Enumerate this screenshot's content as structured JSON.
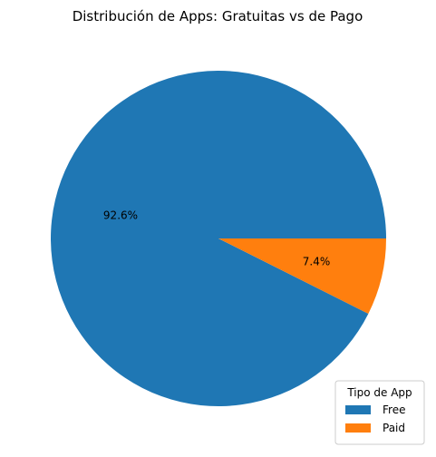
{
  "chart_data": {
    "type": "pie",
    "title": "Distribución de Apps: Gratuitas vs de Pago",
    "categories": [
      "Free",
      "Paid"
    ],
    "values": [
      92.6,
      7.4
    ],
    "labels": [
      "92.6%",
      "7.4%"
    ],
    "colors": [
      "#1f77b4",
      "#ff7f0e"
    ],
    "start_angle_deg": 0,
    "direction": "counterclockwise",
    "legend": {
      "title": "Tipo de App",
      "entries": [
        "Free",
        "Paid"
      ],
      "placement": "lower-right"
    }
  }
}
